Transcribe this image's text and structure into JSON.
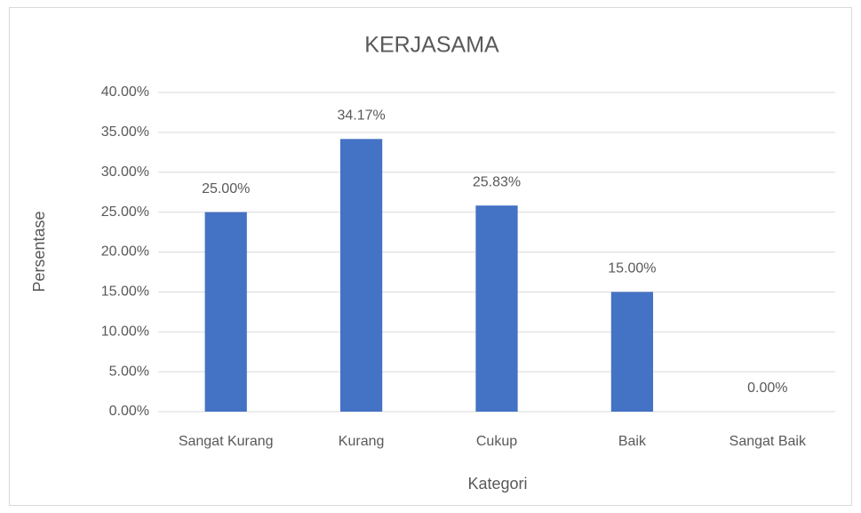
{
  "chart_data": {
    "type": "bar",
    "title": "KERJASAMA",
    "x_label": "Kategori",
    "y_label": "Persentase",
    "categories": [
      "Sangat Kurang",
      "Kurang",
      "Cukup",
      "Baik",
      "Sangat Baik"
    ],
    "values": [
      25,
      34.17,
      25.83,
      15,
      0
    ],
    "value_labels": [
      "25.00%",
      "34.17%",
      "25.83%",
      "15.00%",
      "0.00%"
    ],
    "color": "#4472c4",
    "ylim": [
      0,
      40
    ],
    "yticks": [
      {
        "value": 0,
        "label": "0.00%"
      },
      {
        "value": 5,
        "label": "5.00%"
      },
      {
        "value": 10,
        "label": "10.00%"
      },
      {
        "value": 15,
        "label": "15.00%"
      },
      {
        "value": 20,
        "label": "20.00%"
      },
      {
        "value": 25,
        "label": "25.00%"
      },
      {
        "value": 30,
        "label": "30.00%"
      },
      {
        "value": 35,
        "label": "35.00%"
      },
      {
        "value": 40,
        "label": "40.00%"
      }
    ],
    "grid": true
  }
}
